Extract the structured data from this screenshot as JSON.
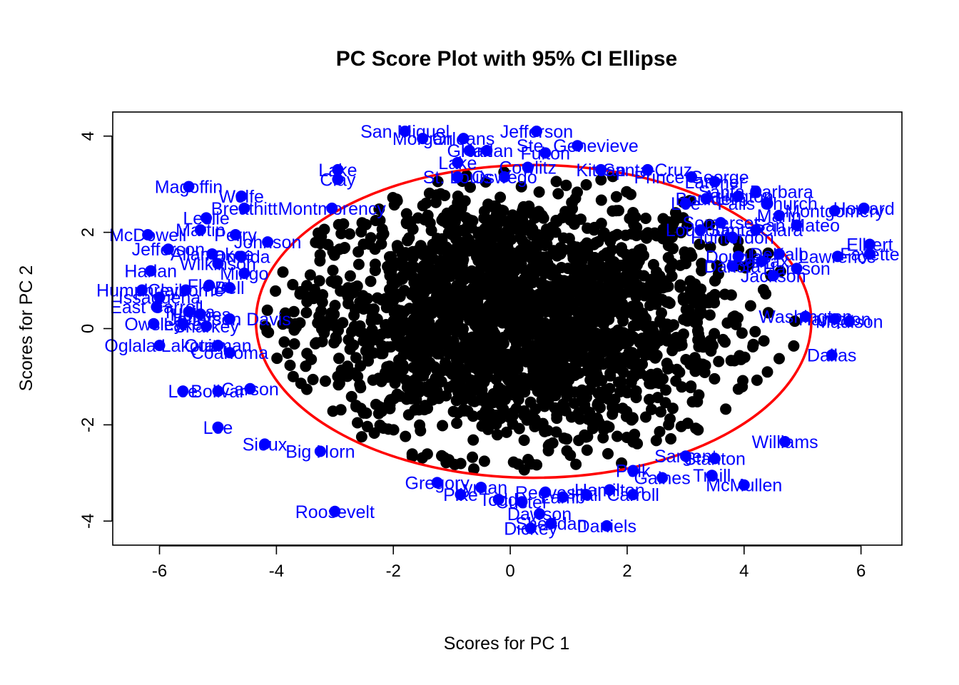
{
  "chart_data": {
    "type": "scatter",
    "title": "PC Score Plot with 95% CI Ellipse",
    "xlabel": "Scores for PC 1",
    "ylabel": "Scores for PC 2",
    "xlim": [
      -6.8,
      6.7
    ],
    "ylim": [
      -4.5,
      4.5
    ],
    "xticks": [
      -6,
      -4,
      -2,
      0,
      2,
      4,
      6
    ],
    "yticks": [
      -4,
      -2,
      0,
      2,
      4
    ],
    "grid": false,
    "legend": "none",
    "colors": {
      "inlier": "#000000",
      "outlier": "#0000ff",
      "ellipse": "#ff0000"
    },
    "ellipse": {
      "center": [
        0.4,
        0.15
      ],
      "rx": 4.75,
      "ry": 3.25
    },
    "inlier_cloud": {
      "count": 2200,
      "center": [
        0.0,
        0.2
      ],
      "sd": [
        1.85,
        1.35
      ],
      "note": "dense black point cloud inside the ellipse"
    },
    "outliers": [
      {
        "x": -1.8,
        "y": 4.1,
        "label": "San Miguel"
      },
      {
        "x": -1.5,
        "y": 3.95,
        "label": "Morgan"
      },
      {
        "x": -0.8,
        "y": 3.95,
        "label": "Orleans"
      },
      {
        "x": 0.45,
        "y": 4.1,
        "label": "Jefferson"
      },
      {
        "x": -0.7,
        "y": 3.7,
        "label": "Grant"
      },
      {
        "x": -0.4,
        "y": 3.7,
        "label": "Harlan"
      },
      {
        "x": 1.15,
        "y": 3.8,
        "label": "Ste. Genevieve"
      },
      {
        "x": 0.6,
        "y": 3.65,
        "label": "Fulton"
      },
      {
        "x": -0.9,
        "y": 3.45,
        "label": "Lake"
      },
      {
        "x": 0.3,
        "y": 3.35,
        "label": "Cowlitz"
      },
      {
        "x": 1.55,
        "y": 3.3,
        "label": "Kitsap"
      },
      {
        "x": 2.35,
        "y": 3.3,
        "label": "Santa Cruz"
      },
      {
        "x": -2.95,
        "y": 3.3,
        "label": "Lake"
      },
      {
        "x": -2.95,
        "y": 3.1,
        "label": "Clay"
      },
      {
        "x": -0.9,
        "y": 3.15,
        "label": "St. Louis"
      },
      {
        "x": -0.1,
        "y": 3.15,
        "label": "Oswego"
      },
      {
        "x": 3.1,
        "y": 3.15,
        "label": "Prince George"
      },
      {
        "x": 3.5,
        "y": 3.05,
        "label": "Larimer"
      },
      {
        "x": 4.2,
        "y": 2.85,
        "label": "Santa Barbara"
      },
      {
        "x": 3.0,
        "y": 2.6,
        "label": "Lee"
      },
      {
        "x": -5.5,
        "y": 2.95,
        "label": "Magoffin"
      },
      {
        "x": -4.6,
        "y": 2.75,
        "label": "Wolfe"
      },
      {
        "x": -4.55,
        "y": 2.5,
        "label": "Breathitt"
      },
      {
        "x": -3.05,
        "y": 2.5,
        "label": "Montmorency"
      },
      {
        "x": -5.2,
        "y": 2.3,
        "label": "Leslie"
      },
      {
        "x": -5.3,
        "y": 2.05,
        "label": "Martin"
      },
      {
        "x": -4.7,
        "y": 1.95,
        "label": "Perry"
      },
      {
        "x": -6.2,
        "y": 1.95,
        "label": "McDowell"
      },
      {
        "x": -4.15,
        "y": 1.8,
        "label": "Johnson"
      },
      {
        "x": -5.85,
        "y": 1.65,
        "label": "Jefferson"
      },
      {
        "x": -5.1,
        "y": 1.55,
        "label": "Allamakee"
      },
      {
        "x": -4.6,
        "y": 1.5,
        "label": "Oneida"
      },
      {
        "x": -5.0,
        "y": 1.35,
        "label": "Wilkinson"
      },
      {
        "x": -4.55,
        "y": 1.15,
        "label": "Mingo"
      },
      {
        "x": -6.15,
        "y": 1.2,
        "label": "Harlan"
      },
      {
        "x": -5.15,
        "y": 0.9,
        "label": "Floyd"
      },
      {
        "x": -4.8,
        "y": 0.85,
        "label": "Bell"
      },
      {
        "x": -6.3,
        "y": 0.8,
        "label": "Humphreys"
      },
      {
        "x": -5.55,
        "y": 0.8,
        "label": "Claiborne"
      },
      {
        "x": -6.0,
        "y": 0.65,
        "label": "Issaquena"
      },
      {
        "x": -6.05,
        "y": 0.45,
        "label": "East Carroll"
      },
      {
        "x": -5.5,
        "y": 0.35,
        "label": "Tunica"
      },
      {
        "x": -5.3,
        "y": 0.3,
        "label": "Holmes"
      },
      {
        "x": -4.8,
        "y": 0.2,
        "label": "Jefferson Davis"
      },
      {
        "x": -5.6,
        "y": 0.1,
        "label": "Lake"
      },
      {
        "x": -6.1,
        "y": 0.1,
        "label": "Owsley"
      },
      {
        "x": -5.2,
        "y": 0.05,
        "label": "Sharkey"
      },
      {
        "x": -6.0,
        "y": -0.35,
        "label": "Oglala Lakota"
      },
      {
        "x": -5.0,
        "y": -0.35,
        "label": "Quitman"
      },
      {
        "x": -4.8,
        "y": -0.5,
        "label": "Coahoma"
      },
      {
        "x": -5.6,
        "y": -1.3,
        "label": "Lee"
      },
      {
        "x": -5.0,
        "y": -1.3,
        "label": "Bolivar"
      },
      {
        "x": -4.45,
        "y": -1.25,
        "label": "Carson"
      },
      {
        "x": -5.0,
        "y": -2.05,
        "label": "Lee"
      },
      {
        "x": -4.2,
        "y": -2.4,
        "label": "Sioux"
      },
      {
        "x": -3.25,
        "y": -2.55,
        "label": "Big Horn"
      },
      {
        "x": -3.0,
        "y": -3.8,
        "label": "Roosevelt"
      },
      {
        "x": -1.25,
        "y": -3.2,
        "label": "Gregory"
      },
      {
        "x": -0.85,
        "y": -3.45,
        "label": "Pike"
      },
      {
        "x": -0.5,
        "y": -3.3,
        "label": "Lyman"
      },
      {
        "x": -0.2,
        "y": -3.55,
        "label": "Todd"
      },
      {
        "x": 0.2,
        "y": -3.6,
        "label": "Custer"
      },
      {
        "x": 0.6,
        "y": -3.4,
        "label": "Reeves"
      },
      {
        "x": 0.9,
        "y": -3.5,
        "label": "Lamb"
      },
      {
        "x": 1.3,
        "y": -3.45,
        "label": "Hall"
      },
      {
        "x": 1.7,
        "y": -3.35,
        "label": "Hamilton"
      },
      {
        "x": 2.1,
        "y": -3.45,
        "label": "Carroll"
      },
      {
        "x": 0.5,
        "y": -3.85,
        "label": "Dawson"
      },
      {
        "x": 0.7,
        "y": -4.05,
        "label": "Sheridan"
      },
      {
        "x": 0.35,
        "y": -4.15,
        "label": "Dickey"
      },
      {
        "x": 1.65,
        "y": -4.1,
        "label": "Daniels"
      },
      {
        "x": 2.1,
        "y": -2.95,
        "label": "Polk"
      },
      {
        "x": 2.6,
        "y": -3.1,
        "label": "Gaines"
      },
      {
        "x": 3.0,
        "y": -2.65,
        "label": "Sargent"
      },
      {
        "x": 3.5,
        "y": -2.7,
        "label": "Stanton"
      },
      {
        "x": 3.45,
        "y": -3.05,
        "label": "Traill"
      },
      {
        "x": 4.0,
        "y": -3.25,
        "label": "McMullen"
      },
      {
        "x": 4.7,
        "y": -2.35,
        "label": "Williams"
      },
      {
        "x": 5.5,
        "y": -0.55,
        "label": "Dallas"
      },
      {
        "x": 5.05,
        "y": 0.25,
        "label": "Washington"
      },
      {
        "x": 5.55,
        "y": 0.2,
        "label": "Hampton"
      },
      {
        "x": 5.8,
        "y": 0.15,
        "label": "Madison"
      },
      {
        "x": 4.9,
        "y": 1.25,
        "label": "Harrison"
      },
      {
        "x": 4.5,
        "y": 1.1,
        "label": "Jackson"
      },
      {
        "x": 5.6,
        "y": 1.5,
        "label": "Lawrence"
      },
      {
        "x": 6.15,
        "y": 1.75,
        "label": "Elbert"
      },
      {
        "x": 6.15,
        "y": 1.55,
        "label": "Fayette"
      },
      {
        "x": 6.05,
        "y": 2.5,
        "label": "Howard"
      },
      {
        "x": 5.55,
        "y": 2.45,
        "label": "Montgomery"
      },
      {
        "x": 4.6,
        "y": 2.35,
        "label": "Marin"
      },
      {
        "x": 4.9,
        "y": 2.15,
        "label": "San Mateo"
      },
      {
        "x": 4.2,
        "y": 2.05,
        "label": "Santa Clara"
      },
      {
        "x": 3.8,
        "y": 1.9,
        "label": "Hunterdon"
      },
      {
        "x": 3.6,
        "y": 2.2,
        "label": "Somerset"
      },
      {
        "x": 3.25,
        "y": 2.05,
        "label": "Loudoun"
      },
      {
        "x": 3.9,
        "y": 1.5,
        "label": "Douglas"
      },
      {
        "x": 4.3,
        "y": 1.4,
        "label": "Fairfax"
      },
      {
        "x": 4.6,
        "y": 1.55,
        "label": "DeKalb"
      },
      {
        "x": 3.8,
        "y": 1.3,
        "label": "Dakota"
      },
      {
        "x": 3.35,
        "y": 2.7,
        "label": "Boulder"
      },
      {
        "x": 3.9,
        "y": 2.75,
        "label": "Arlington"
      },
      {
        "x": 4.4,
        "y": 2.6,
        "label": "Falls Church"
      }
    ]
  }
}
